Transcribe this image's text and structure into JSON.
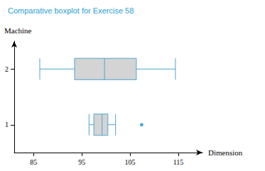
{
  "chart_data": {
    "type": "boxplot",
    "title": "Comparative boxplot for Exercise 58",
    "x_label": "Dimension",
    "y_label": "Machine",
    "orientation": "horizontal",
    "categories": [
      "1",
      "2"
    ],
    "values": [
      [
        96.5,
        97.5,
        99.2,
        100.4,
        102
      ],
      [
        86.3,
        93.5,
        99.7,
        106.3,
        114.4
      ]
    ],
    "outliers": [
      [
        107.4
      ],
      []
    ],
    "xlim": [
      81,
      120
    ],
    "xticks": [
      85,
      95,
      105,
      115
    ],
    "color": "#4fa3d1",
    "grid": false
  }
}
